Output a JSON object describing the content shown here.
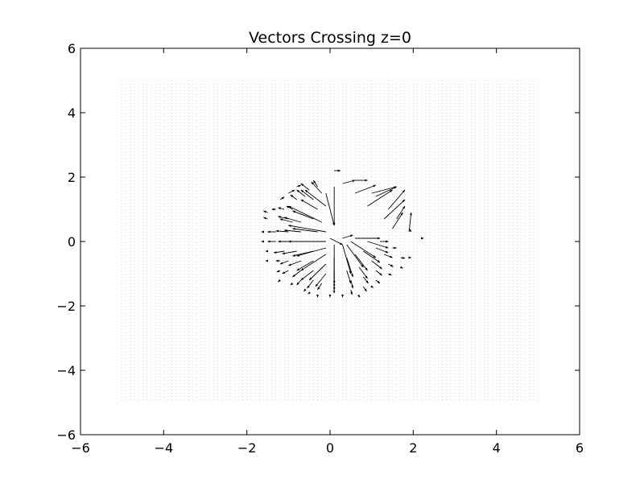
{
  "chart_data": {
    "type": "quiver",
    "title": "Vectors Crossing z=0",
    "xlabel": "",
    "ylabel": "",
    "xlim": [
      -6,
      6
    ],
    "ylim": [
      -6,
      6
    ],
    "xticks": [
      "−6",
      "−4",
      "−2",
      "0",
      "2",
      "4",
      "6"
    ],
    "yticks": [
      "−6",
      "−4",
      "−2",
      "0",
      "2",
      "4",
      "6"
    ],
    "xtick_values": [
      -6,
      -4,
      -2,
      0,
      2,
      4,
      6
    ],
    "ytick_values": [
      -6,
      -4,
      -2,
      0,
      2,
      4,
      6
    ],
    "grid": false,
    "background_grid": {
      "x_range": [
        -5,
        5
      ],
      "y_range": [
        -5,
        5
      ],
      "step": 0.1,
      "color": "#c8c8c8"
    },
    "arrow_color": "#000000",
    "vectors": [
      {
        "x": 0.1,
        "y": 2.2,
        "u": 0.15,
        "v": 0.0
      },
      {
        "x": 0.3,
        "y": 1.8,
        "u": 0.3,
        "v": 0.1
      },
      {
        "x": 0.6,
        "y": 1.9,
        "u": 0.3,
        "v": 0.0
      },
      {
        "x": 0.6,
        "y": 1.5,
        "u": 0.5,
        "v": 0.25
      },
      {
        "x": 0.9,
        "y": 1.1,
        "u": 0.6,
        "v": 0.5
      },
      {
        "x": 1.0,
        "y": 1.5,
        "u": 0.6,
        "v": 0.2
      },
      {
        "x": 1.1,
        "y": 1.4,
        "u": 0.5,
        "v": 0.3
      },
      {
        "x": 1.3,
        "y": 0.7,
        "u": 0.5,
        "v": 0.6
      },
      {
        "x": 1.4,
        "y": 1.0,
        "u": 0.4,
        "v": 0.6
      },
      {
        "x": 1.5,
        "y": 0.4,
        "u": 0.25,
        "v": 0.5
      },
      {
        "x": 1.6,
        "y": 0.7,
        "u": 0.2,
        "v": 0.4
      },
      {
        "x": 1.9,
        "y": 0.3,
        "u": 0.05,
        "v": 0.6
      },
      {
        "x": 1.9,
        "y": 0.4,
        "u": 0.05,
        "v": -0.1
      },
      {
        "x": 2.2,
        "y": 0.1,
        "u": 0.05,
        "v": 0.0
      },
      {
        "x": 0.1,
        "y": 1.7,
        "u": 0.0,
        "v": -1.2
      },
      {
        "x": -0.1,
        "y": 1.5,
        "u": 0.2,
        "v": -1.0
      },
      {
        "x": 0.0,
        "y": 0.1,
        "u": 0.3,
        "v": -0.2
      },
      {
        "x": 0.6,
        "y": 0.1,
        "u": 0.6,
        "v": 0.0
      },
      {
        "x": 0.3,
        "y": 0.1,
        "u": 0.25,
        "v": 0.1
      },
      {
        "x": -1.0,
        "y": 1.5,
        "u": 0.15,
        "v": 0.1
      },
      {
        "x": -1.2,
        "y": 1.3,
        "u": 0.1,
        "v": 0.08
      },
      {
        "x": -0.8,
        "y": 1.7,
        "u": 0.1,
        "v": 0.05
      },
      {
        "x": -1.5,
        "y": 0.9,
        "u": -0.1,
        "v": 0.05
      },
      {
        "x": -1.5,
        "y": 0.7,
        "u": -0.1,
        "v": 0.05
      },
      {
        "x": -1.6,
        "y": 0.3,
        "u": -0.05,
        "v": 0.0
      },
      {
        "x": -1.6,
        "y": 0.0,
        "u": -0.05,
        "v": 0.0
      },
      {
        "x": -1.5,
        "y": -0.3,
        "u": -0.05,
        "v": 0.0
      },
      {
        "x": -1.5,
        "y": -0.6,
        "u": -0.05,
        "v": 0.0
      },
      {
        "x": -1.2,
        "y": -0.6,
        "u": -0.1,
        "v": 0.0
      },
      {
        "x": -1.2,
        "y": -0.9,
        "u": -0.08,
        "v": -0.05
      },
      {
        "x": -1.2,
        "y": -1.2,
        "u": -0.05,
        "v": -0.05
      },
      {
        "x": -0.9,
        "y": -1.3,
        "u": -0.05,
        "v": -0.05
      },
      {
        "x": -0.6,
        "y": -1.5,
        "u": -0.03,
        "v": -0.05
      },
      {
        "x": -0.3,
        "y": -1.7,
        "u": 0.0,
        "v": -0.03
      },
      {
        "x": 0.0,
        "y": -1.7,
        "u": 0.0,
        "v": -0.03
      },
      {
        "x": 0.3,
        "y": -1.7,
        "u": 0.0,
        "v": -0.03
      },
      {
        "x": -1.3,
        "y": 1.0,
        "u": -0.1,
        "v": 0.0
      },
      {
        "x": -1.1,
        "y": 1.0,
        "u": -0.15,
        "v": 0.05
      },
      {
        "x": -0.9,
        "y": 1.0,
        "u": -0.15,
        "v": 0.1
      },
      {
        "x": -0.8,
        "y": 1.3,
        "u": -0.15,
        "v": 0.15
      },
      {
        "x": -0.6,
        "y": 1.4,
        "u": -0.2,
        "v": 0.2
      },
      {
        "x": -0.5,
        "y": 1.6,
        "u": -0.2,
        "v": 0.2
      },
      {
        "x": -0.3,
        "y": 1.7,
        "u": -0.1,
        "v": 0.2
      },
      {
        "x": -0.4,
        "y": 1.3,
        "u": -0.3,
        "v": 0.3
      },
      {
        "x": -0.2,
        "y": 1.5,
        "u": -0.25,
        "v": 0.35
      },
      {
        "x": -0.1,
        "y": 1.1,
        "u": -0.5,
        "v": 0.5
      },
      {
        "x": -0.3,
        "y": 1.0,
        "u": -0.4,
        "v": 0.3
      },
      {
        "x": -0.2,
        "y": 0.6,
        "u": -0.8,
        "v": 0.5
      },
      {
        "x": -0.4,
        "y": 0.7,
        "u": -0.5,
        "v": 0.25
      },
      {
        "x": -0.6,
        "y": 0.8,
        "u": -0.3,
        "v": 0.15
      },
      {
        "x": -0.7,
        "y": 0.6,
        "u": -0.4,
        "v": 0.15
      },
      {
        "x": -0.9,
        "y": 0.6,
        "u": -0.3,
        "v": 0.1
      },
      {
        "x": -1.0,
        "y": 0.7,
        "u": -0.25,
        "v": 0.08
      },
      {
        "x": -0.1,
        "y": 0.3,
        "u": -0.9,
        "v": 0.2
      },
      {
        "x": -0.3,
        "y": 0.3,
        "u": -0.6,
        "v": 0.1
      },
      {
        "x": -0.7,
        "y": 0.3,
        "u": -0.4,
        "v": 0.05
      },
      {
        "x": -1.0,
        "y": 0.3,
        "u": -0.3,
        "v": 0.03
      },
      {
        "x": -1.3,
        "y": 0.3,
        "u": -0.2,
        "v": 0.0
      },
      {
        "x": -0.1,
        "y": 0.0,
        "u": -0.9,
        "v": 0.0
      },
      {
        "x": -0.5,
        "y": 0.0,
        "u": -0.5,
        "v": 0.0
      },
      {
        "x": -0.9,
        "y": 0.0,
        "u": -0.35,
        "v": 0.0
      },
      {
        "x": -1.3,
        "y": 0.0,
        "u": -0.2,
        "v": 0.0
      },
      {
        "x": -0.1,
        "y": -0.2,
        "u": -0.7,
        "v": -0.25
      },
      {
        "x": -0.4,
        "y": -0.3,
        "u": -0.5,
        "v": -0.15
      },
      {
        "x": -0.8,
        "y": -0.3,
        "u": -0.35,
        "v": -0.08
      },
      {
        "x": -1.1,
        "y": -0.3,
        "u": -0.25,
        "v": -0.05
      },
      {
        "x": -0.1,
        "y": -0.4,
        "u": -0.6,
        "v": -0.5
      },
      {
        "x": -0.4,
        "y": -0.6,
        "u": -0.4,
        "v": -0.3
      },
      {
        "x": -0.7,
        "y": -0.6,
        "u": -0.3,
        "v": -0.15
      },
      {
        "x": -1.0,
        "y": -0.6,
        "u": -0.2,
        "v": -0.1
      },
      {
        "x": -0.1,
        "y": -0.7,
        "u": -0.4,
        "v": -0.5
      },
      {
        "x": -0.4,
        "y": -0.9,
        "u": -0.3,
        "v": -0.3
      },
      {
        "x": -0.7,
        "y": -0.9,
        "u": -0.2,
        "v": -0.2
      },
      {
        "x": -1.0,
        "y": -0.9,
        "u": -0.15,
        "v": -0.1
      },
      {
        "x": -0.1,
        "y": -1.0,
        "u": -0.25,
        "v": -0.4
      },
      {
        "x": -0.4,
        "y": -1.2,
        "u": -0.15,
        "v": -0.25
      },
      {
        "x": -0.7,
        "y": -1.2,
        "u": -0.1,
        "v": -0.15
      },
      {
        "x": -0.2,
        "y": -1.3,
        "u": -0.1,
        "v": -0.2
      },
      {
        "x": 0.1,
        "y": -0.1,
        "u": 0.0,
        "v": -1.2
      },
      {
        "x": 0.1,
        "y": -0.5,
        "u": 0.0,
        "v": -0.8
      },
      {
        "x": 0.1,
        "y": -0.9,
        "u": 0.0,
        "v": -0.5
      },
      {
        "x": 0.1,
        "y": -1.2,
        "u": 0.0,
        "v": -0.3
      },
      {
        "x": 0.1,
        "y": -1.4,
        "u": 0.0,
        "v": -0.2
      },
      {
        "x": 0.3,
        "y": -0.1,
        "u": 0.2,
        "v": -0.9
      },
      {
        "x": 0.4,
        "y": -0.5,
        "u": 0.15,
        "v": -0.6
      },
      {
        "x": 0.4,
        "y": -0.9,
        "u": 0.1,
        "v": -0.4
      },
      {
        "x": 0.5,
        "y": -1.2,
        "u": 0.05,
        "v": -0.25
      },
      {
        "x": 0.5,
        "y": -1.5,
        "u": 0.03,
        "v": -0.15
      },
      {
        "x": 0.4,
        "y": -0.1,
        "u": 0.4,
        "v": -0.7
      },
      {
        "x": 0.6,
        "y": -0.4,
        "u": 0.3,
        "v": -0.5
      },
      {
        "x": 0.7,
        "y": -0.8,
        "u": 0.2,
        "v": -0.35
      },
      {
        "x": 0.8,
        "y": -1.1,
        "u": 0.12,
        "v": -0.2
      },
      {
        "x": 0.8,
        "y": -1.4,
        "u": 0.08,
        "v": -0.15
      },
      {
        "x": 0.5,
        "y": 0.0,
        "u": 0.6,
        "v": -0.5
      },
      {
        "x": 0.8,
        "y": -0.3,
        "u": 0.4,
        "v": -0.35
      },
      {
        "x": 1.0,
        "y": -0.6,
        "u": 0.25,
        "v": -0.25
      },
      {
        "x": 1.1,
        "y": -0.9,
        "u": 0.15,
        "v": -0.15
      },
      {
        "x": 1.1,
        "y": -1.2,
        "u": 0.1,
        "v": -0.1
      },
      {
        "x": 0.9,
        "y": 0.0,
        "u": 0.5,
        "v": -0.2
      },
      {
        "x": 1.1,
        "y": -0.2,
        "u": 0.3,
        "v": -0.15
      },
      {
        "x": 1.3,
        "y": -0.4,
        "u": 0.2,
        "v": -0.1
      },
      {
        "x": 1.4,
        "y": -0.7,
        "u": 0.12,
        "v": -0.08
      },
      {
        "x": 1.4,
        "y": -1.0,
        "u": 0.08,
        "v": -0.05
      },
      {
        "x": 1.2,
        "y": 0.0,
        "u": 0.2,
        "v": 0.0
      },
      {
        "x": 1.5,
        "y": -0.2,
        "u": 0.1,
        "v": 0.0
      },
      {
        "x": 1.7,
        "y": -0.5,
        "u": 0.1,
        "v": -0.02
      },
      {
        "x": 1.7,
        "y": -0.8,
        "u": 0.05,
        "v": -0.03
      },
      {
        "x": 1.9,
        "y": -0.5,
        "u": 0.05,
        "v": 0.0
      },
      {
        "x": -0.5,
        "y": -1.6,
        "u": -0.03,
        "v": -0.03
      },
      {
        "x": 0.7,
        "y": -1.7,
        "u": 0.02,
        "v": -0.03
      },
      {
        "x": 1.0,
        "y": -1.4,
        "u": 0.04,
        "v": -0.03
      }
    ]
  }
}
